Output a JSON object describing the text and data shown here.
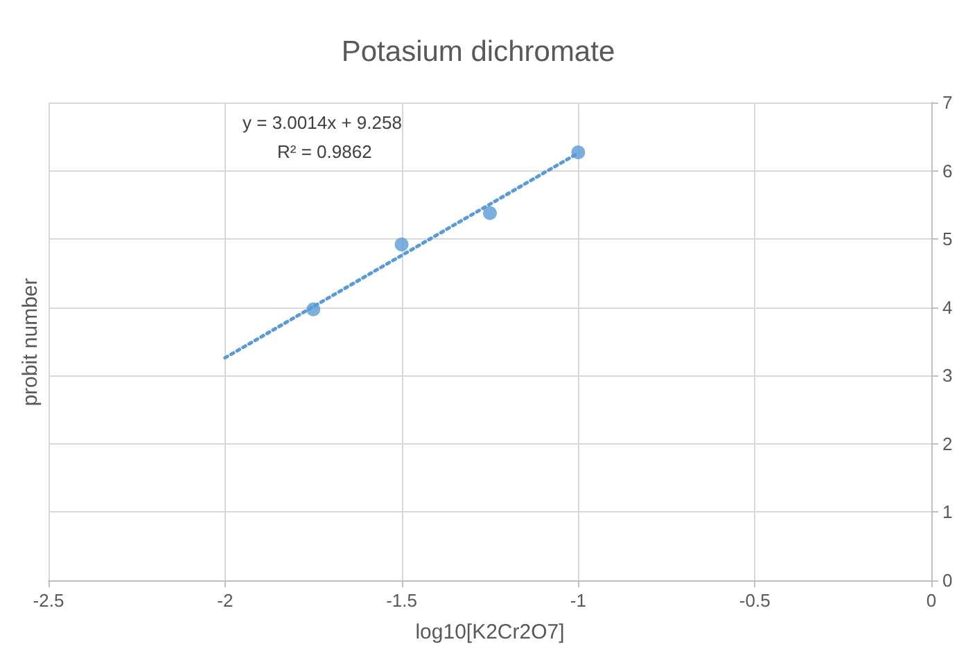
{
  "chart_data": {
    "type": "scatter",
    "title": "Potasium dichromate",
    "xlabel": "log10[K2Cr2O7]",
    "ylabel": "probit number",
    "annotations": [
      "y = 3.0014x + 9.258",
      "R² = 0.9862"
    ],
    "series": [
      {
        "color": "#5b9bd5",
        "marker": "circle",
        "x": [
          -1.75,
          -1.5,
          -1.25,
          -1
        ],
        "values": [
          3.97,
          4.92,
          5.38,
          6.27
        ]
      },
      {
        "type": "line",
        "color": "#5b9bd5",
        "line_style": "dotted",
        "marker": "none",
        "x": [
          -2,
          -1
        ],
        "values": [
          3.26,
          6.26
        ]
      }
    ],
    "xlim": [
      -2.5,
      0
    ],
    "xticks": [
      -2.5,
      -2,
      -1.5,
      -1,
      -0.5,
      0
    ],
    "ylim": [
      0,
      7
    ],
    "yticks": [
      0,
      1,
      2,
      3,
      4,
      5,
      6,
      7
    ],
    "grid": true
  }
}
